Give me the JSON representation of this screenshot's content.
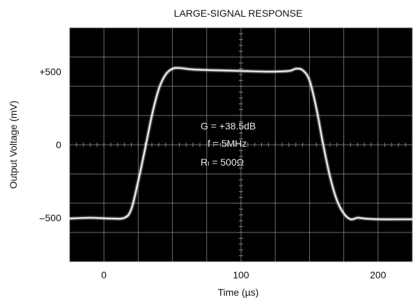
{
  "chart_data": {
    "type": "line",
    "title": "LARGE-SIGNAL RESPONSE",
    "xlabel": "Time (µs)",
    "ylabel": "Output Voltage (mV)",
    "xlim": [
      -25,
      225
    ],
    "ylim": [
      -800,
      800
    ],
    "x_ticks": [
      0,
      100,
      200
    ],
    "x_tick_labels": [
      "0",
      "100",
      "200"
    ],
    "y_ticks": [
      500,
      0,
      -500
    ],
    "y_tick_labels": [
      "+500",
      "0",
      "–500"
    ],
    "grid": true,
    "background": "#000000",
    "trace_color": "#e6e6e6",
    "grid_color": "#8a8a8a",
    "annotations": [
      "G = +38.5dB",
      "f = 5MHz",
      "Rₗ = 500Ω"
    ],
    "series": [
      {
        "x": [
          -25,
          -10,
          5,
          15,
          20,
          25,
          30,
          35,
          40,
          45,
          50,
          55,
          65,
          80,
          100,
          120,
          135,
          140,
          145,
          150,
          155,
          160,
          165,
          170,
          175,
          180,
          185,
          190,
          200,
          225
        ],
        "y": [
          -505,
          -500,
          -505,
          -500,
          -440,
          -250,
          -30,
          200,
          380,
          480,
          520,
          525,
          515,
          510,
          505,
          500,
          505,
          520,
          510,
          440,
          250,
          0,
          -220,
          -380,
          -470,
          -510,
          -500,
          -505,
          -510,
          -510
        ]
      }
    ]
  }
}
